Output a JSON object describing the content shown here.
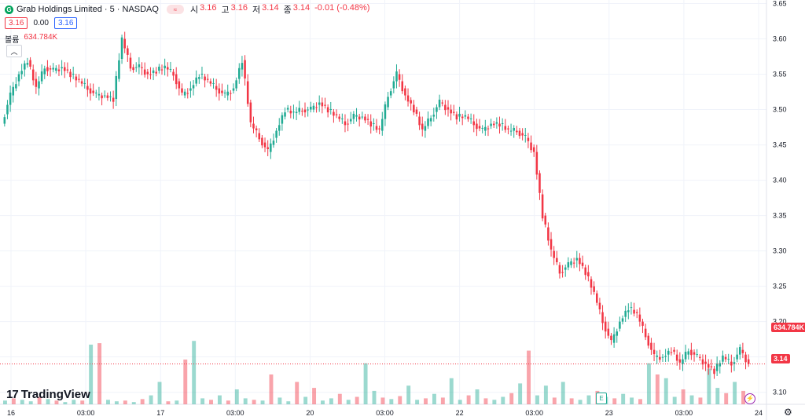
{
  "header": {
    "logo_letter": "G",
    "symbol": "Grab Holdings Limited · 5 · NASDAQ",
    "hide_icon": "≈",
    "ohlc": [
      {
        "k": "시",
        "v": "3.16"
      },
      {
        "k": "고",
        "v": "3.16"
      },
      {
        "k": "저",
        "v": "3.14"
      },
      {
        "k": "종",
        "v": "3.14"
      }
    ],
    "change": "-0.01 (-0.48%)"
  },
  "trade": {
    "sell": "3.16",
    "spread": "0.00",
    "buy": "3.16"
  },
  "volume_legend": {
    "label": "볼륨",
    "value": "634.784K"
  },
  "collapse_icon": "chevron-up-icon",
  "branding": {
    "logo": "17",
    "name": "TradingView"
  },
  "price_tags": {
    "volume": "634.784K",
    "last": "3.14"
  },
  "colors": {
    "up": "#22ab94",
    "down": "#f23645",
    "grid": "#f0f3fa",
    "text": "#131722"
  },
  "chart_data": {
    "type": "candlestick",
    "yaxis_ticks": [
      "3.65",
      "3.60",
      "3.55",
      "3.50",
      "3.45",
      "3.40",
      "3.35",
      "3.30",
      "3.25",
      "3.20",
      "3.15",
      "3.10"
    ],
    "ylim": [
      3.083,
      3.655
    ],
    "xaxis_ticks": [
      "16",
      "03:00",
      "17",
      "03:00",
      "20",
      "03:00",
      "22",
      "03:00",
      "23",
      "03:00",
      "24"
    ],
    "last_price": 3.14,
    "series": [
      {
        "name": "price",
        "close_path": [
          3.48,
          3.52,
          3.55,
          3.57,
          3.53,
          3.56,
          3.555,
          3.56,
          3.55,
          3.54,
          3.53,
          3.52,
          3.52,
          3.515,
          3.6,
          3.56,
          3.56,
          3.55,
          3.555,
          3.56,
          3.55,
          3.52,
          3.53,
          3.55,
          3.54,
          3.53,
          3.52,
          3.53,
          3.57,
          3.48,
          3.46,
          3.44,
          3.47,
          3.5,
          3.495,
          3.5,
          3.5,
          3.51,
          3.5,
          3.49,
          3.48,
          3.49,
          3.49,
          3.48,
          3.47,
          3.52,
          3.55,
          3.52,
          3.5,
          3.47,
          3.49,
          3.51,
          3.5,
          3.49,
          3.49,
          3.48,
          3.47,
          3.48,
          3.48,
          3.47,
          3.47,
          3.46,
          3.44,
          3.35,
          3.3,
          3.27,
          3.28,
          3.29,
          3.27,
          3.24,
          3.2,
          3.17,
          3.2,
          3.22,
          3.21,
          3.18,
          3.15,
          3.15,
          3.16,
          3.14,
          3.16,
          3.15,
          3.14,
          3.13,
          3.15,
          3.14,
          3.16,
          3.14
        ]
      }
    ],
    "volume_heights_pct": [
      5,
      8,
      6,
      4,
      10,
      7,
      5,
      3,
      6,
      5,
      80,
      82,
      6,
      4,
      5,
      3,
      7,
      12,
      30,
      4,
      5,
      60,
      85,
      8,
      6,
      12,
      5,
      20,
      8,
      6,
      5,
      40,
      9,
      4,
      30,
      10,
      22,
      5,
      8,
      14,
      6,
      10,
      55,
      18,
      9,
      7,
      11,
      25,
      6,
      8,
      14,
      9,
      35,
      6,
      12,
      20,
      8,
      6,
      10,
      15,
      28,
      72,
      12,
      25,
      9,
      30,
      8,
      6,
      12,
      18,
      10,
      8,
      14,
      9,
      7,
      55,
      40,
      35,
      10,
      20,
      12,
      9,
      48,
      22,
      15,
      30,
      18
    ]
  }
}
